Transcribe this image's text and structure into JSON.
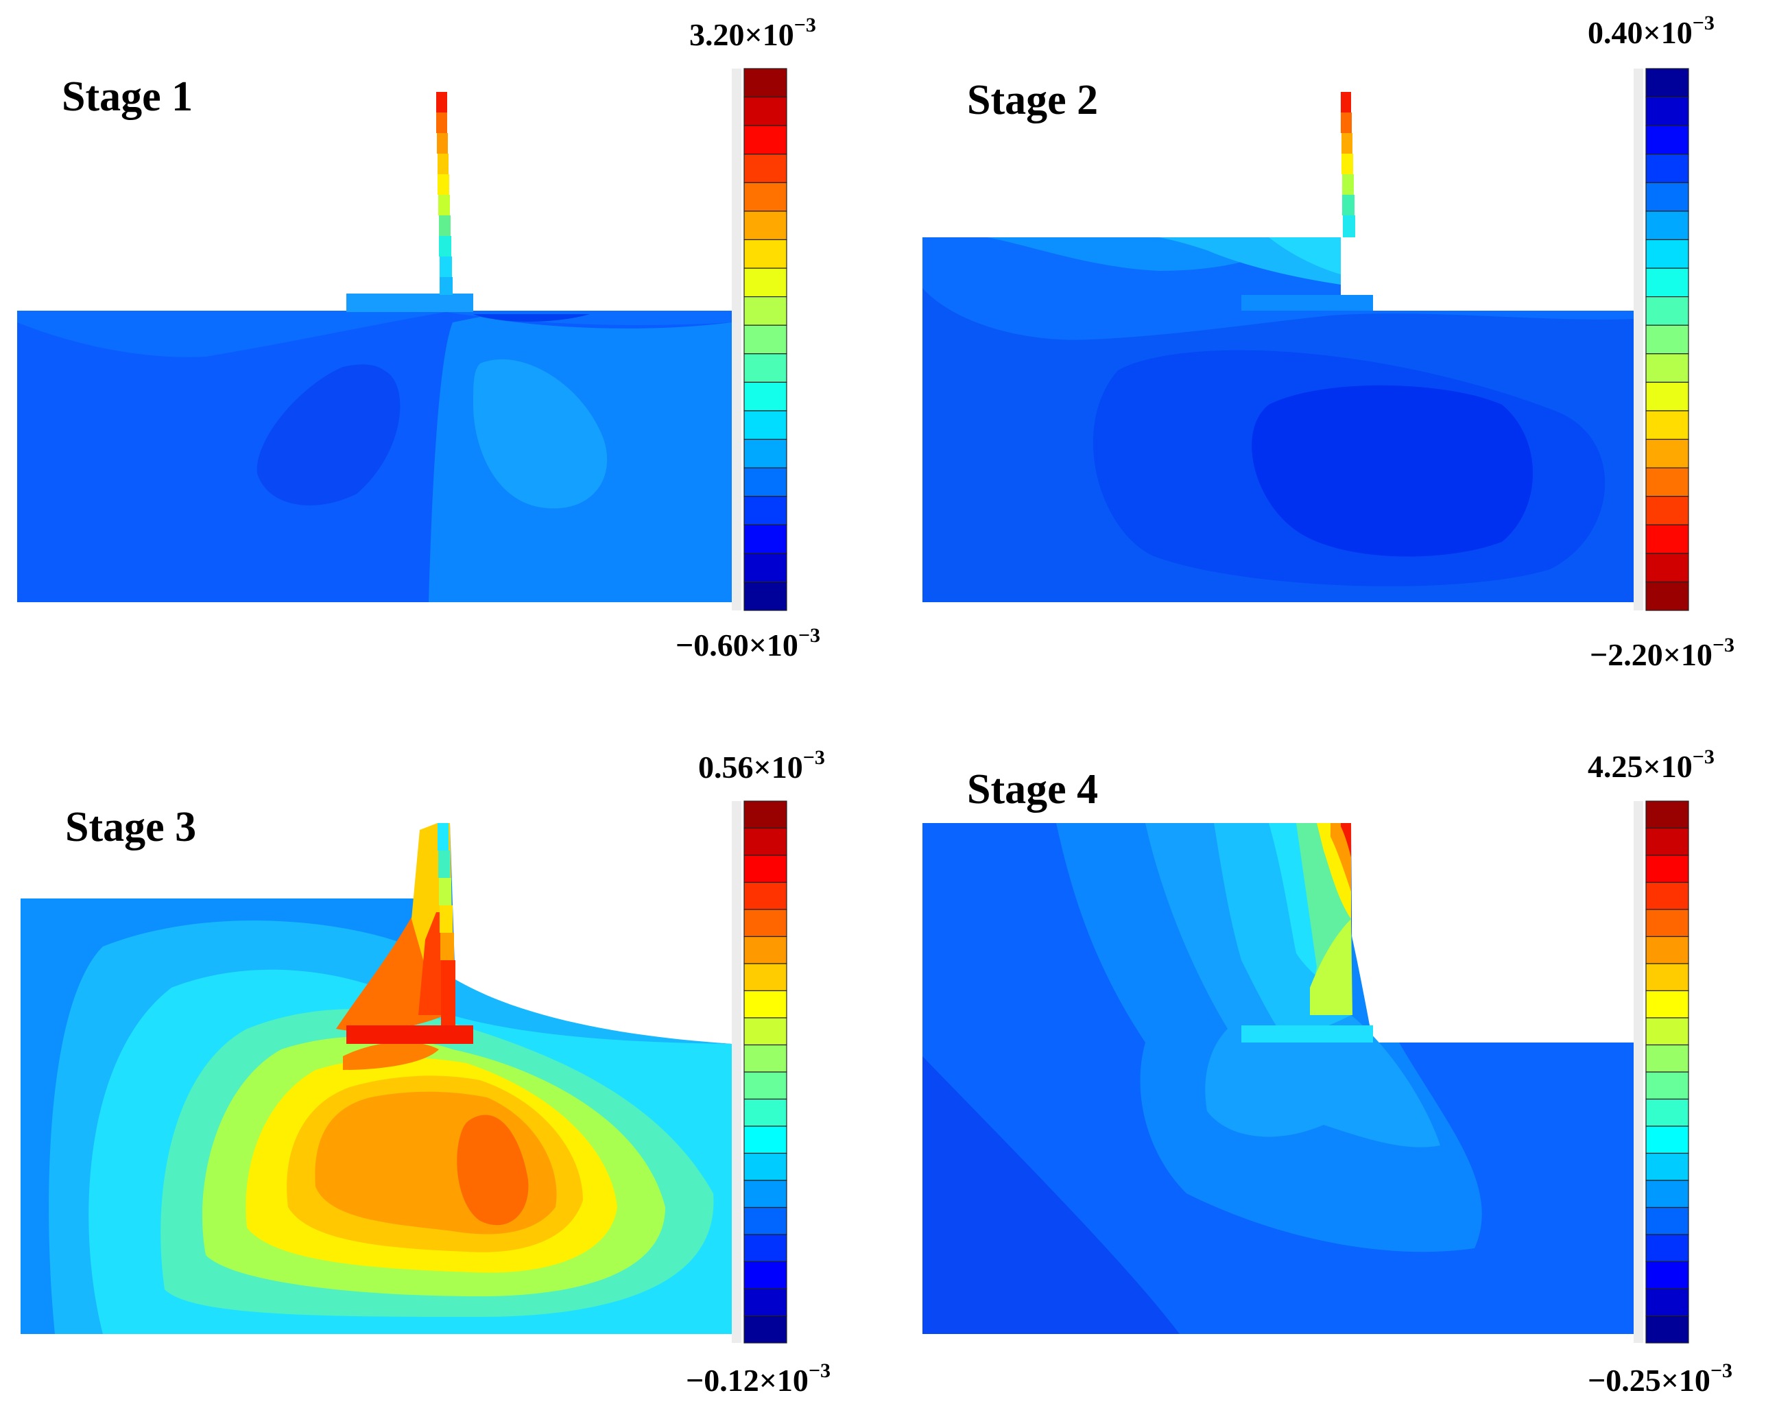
{
  "figure": {
    "panels": [
      {
        "title": "Stage 1",
        "cbar_max": "3.20×10",
        "cbar_min": "−0.60×10",
        "exponent": "−3"
      },
      {
        "title": "Stage 2",
        "cbar_max": "0.40×10",
        "cbar_min": "−2.20×10",
        "exponent": "−3"
      },
      {
        "title": "Stage 3",
        "cbar_max": "0.56×10",
        "cbar_min": "−0.12×10",
        "exponent": "−3"
      },
      {
        "title": "Stage 4",
        "cbar_max": "4.25×10",
        "cbar_min": "−0.25×10",
        "exponent": "−3"
      }
    ]
  },
  "chart_data": [
    {
      "type": "heatmap",
      "title": "Stage 1",
      "scale_max": 0.0032,
      "scale_min": -0.0006,
      "levels": 19,
      "colormap": "jet",
      "reversed": false
    },
    {
      "type": "heatmap",
      "title": "Stage 2",
      "scale_max": 0.0004,
      "scale_min": -0.0022,
      "levels": 19,
      "colormap": "jet",
      "reversed": true
    },
    {
      "type": "heatmap",
      "title": "Stage 3",
      "scale_max": 0.00056,
      "scale_min": -0.00012,
      "levels": 20,
      "colormap": "jet",
      "reversed": false
    },
    {
      "type": "heatmap",
      "title": "Stage 4",
      "scale_max": 0.00425,
      "scale_min": -0.00025,
      "levels": 20,
      "colormap": "jet",
      "reversed": false
    }
  ]
}
